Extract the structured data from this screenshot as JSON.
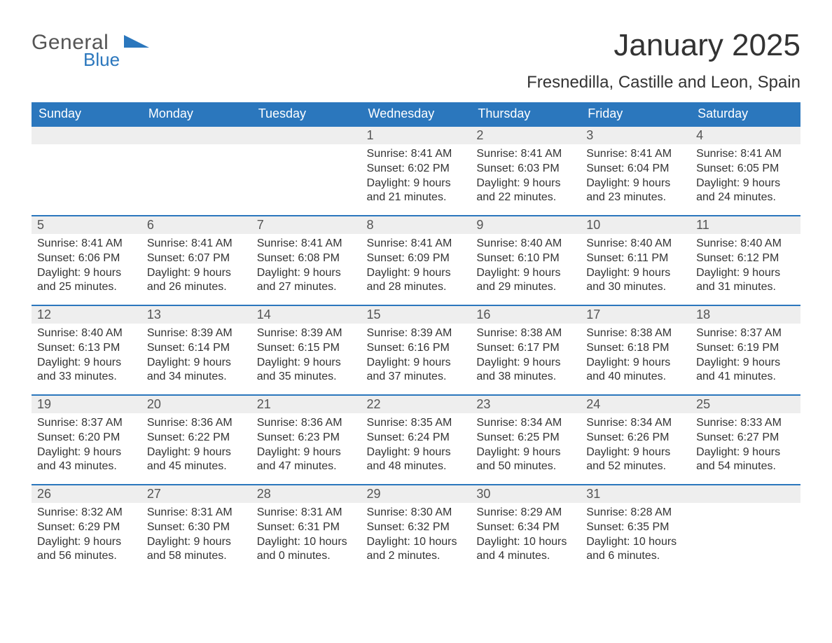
{
  "logo": {
    "word1": "General",
    "word2": "Blue"
  },
  "title": "January 2025",
  "location": "Fresnedilla, Castille and Leon, Spain",
  "colors": {
    "brand_blue": "#2b77bd",
    "header_text": "#ffffff",
    "day_bg": "#eeeeee",
    "body_text": "#333333",
    "daynum_text": "#555555",
    "page_bg": "#ffffff"
  },
  "typography": {
    "title_fontsize_pt": 33,
    "location_fontsize_pt": 18,
    "header_fontsize_pt": 14,
    "daynum_fontsize_pt": 14,
    "body_fontsize_pt": 12
  },
  "calendar": {
    "type": "table",
    "weekday_headers": [
      "Sunday",
      "Monday",
      "Tuesday",
      "Wednesday",
      "Thursday",
      "Friday",
      "Saturday"
    ],
    "weeks": [
      [
        null,
        null,
        null,
        {
          "day": "1",
          "sunrise": "Sunrise: 8:41 AM",
          "sunset": "Sunset: 6:02 PM",
          "daylight": "Daylight: 9 hours and 21 minutes."
        },
        {
          "day": "2",
          "sunrise": "Sunrise: 8:41 AM",
          "sunset": "Sunset: 6:03 PM",
          "daylight": "Daylight: 9 hours and 22 minutes."
        },
        {
          "day": "3",
          "sunrise": "Sunrise: 8:41 AM",
          "sunset": "Sunset: 6:04 PM",
          "daylight": "Daylight: 9 hours and 23 minutes."
        },
        {
          "day": "4",
          "sunrise": "Sunrise: 8:41 AM",
          "sunset": "Sunset: 6:05 PM",
          "daylight": "Daylight: 9 hours and 24 minutes."
        }
      ],
      [
        {
          "day": "5",
          "sunrise": "Sunrise: 8:41 AM",
          "sunset": "Sunset: 6:06 PM",
          "daylight": "Daylight: 9 hours and 25 minutes."
        },
        {
          "day": "6",
          "sunrise": "Sunrise: 8:41 AM",
          "sunset": "Sunset: 6:07 PM",
          "daylight": "Daylight: 9 hours and 26 minutes."
        },
        {
          "day": "7",
          "sunrise": "Sunrise: 8:41 AM",
          "sunset": "Sunset: 6:08 PM",
          "daylight": "Daylight: 9 hours and 27 minutes."
        },
        {
          "day": "8",
          "sunrise": "Sunrise: 8:41 AM",
          "sunset": "Sunset: 6:09 PM",
          "daylight": "Daylight: 9 hours and 28 minutes."
        },
        {
          "day": "9",
          "sunrise": "Sunrise: 8:40 AM",
          "sunset": "Sunset: 6:10 PM",
          "daylight": "Daylight: 9 hours and 29 minutes."
        },
        {
          "day": "10",
          "sunrise": "Sunrise: 8:40 AM",
          "sunset": "Sunset: 6:11 PM",
          "daylight": "Daylight: 9 hours and 30 minutes."
        },
        {
          "day": "11",
          "sunrise": "Sunrise: 8:40 AM",
          "sunset": "Sunset: 6:12 PM",
          "daylight": "Daylight: 9 hours and 31 minutes."
        }
      ],
      [
        {
          "day": "12",
          "sunrise": "Sunrise: 8:40 AM",
          "sunset": "Sunset: 6:13 PM",
          "daylight": "Daylight: 9 hours and 33 minutes."
        },
        {
          "day": "13",
          "sunrise": "Sunrise: 8:39 AM",
          "sunset": "Sunset: 6:14 PM",
          "daylight": "Daylight: 9 hours and 34 minutes."
        },
        {
          "day": "14",
          "sunrise": "Sunrise: 8:39 AM",
          "sunset": "Sunset: 6:15 PM",
          "daylight": "Daylight: 9 hours and 35 minutes."
        },
        {
          "day": "15",
          "sunrise": "Sunrise: 8:39 AM",
          "sunset": "Sunset: 6:16 PM",
          "daylight": "Daylight: 9 hours and 37 minutes."
        },
        {
          "day": "16",
          "sunrise": "Sunrise: 8:38 AM",
          "sunset": "Sunset: 6:17 PM",
          "daylight": "Daylight: 9 hours and 38 minutes."
        },
        {
          "day": "17",
          "sunrise": "Sunrise: 8:38 AM",
          "sunset": "Sunset: 6:18 PM",
          "daylight": "Daylight: 9 hours and 40 minutes."
        },
        {
          "day": "18",
          "sunrise": "Sunrise: 8:37 AM",
          "sunset": "Sunset: 6:19 PM",
          "daylight": "Daylight: 9 hours and 41 minutes."
        }
      ],
      [
        {
          "day": "19",
          "sunrise": "Sunrise: 8:37 AM",
          "sunset": "Sunset: 6:20 PM",
          "daylight": "Daylight: 9 hours and 43 minutes."
        },
        {
          "day": "20",
          "sunrise": "Sunrise: 8:36 AM",
          "sunset": "Sunset: 6:22 PM",
          "daylight": "Daylight: 9 hours and 45 minutes."
        },
        {
          "day": "21",
          "sunrise": "Sunrise: 8:36 AM",
          "sunset": "Sunset: 6:23 PM",
          "daylight": "Daylight: 9 hours and 47 minutes."
        },
        {
          "day": "22",
          "sunrise": "Sunrise: 8:35 AM",
          "sunset": "Sunset: 6:24 PM",
          "daylight": "Daylight: 9 hours and 48 minutes."
        },
        {
          "day": "23",
          "sunrise": "Sunrise: 8:34 AM",
          "sunset": "Sunset: 6:25 PM",
          "daylight": "Daylight: 9 hours and 50 minutes."
        },
        {
          "day": "24",
          "sunrise": "Sunrise: 8:34 AM",
          "sunset": "Sunset: 6:26 PM",
          "daylight": "Daylight: 9 hours and 52 minutes."
        },
        {
          "day": "25",
          "sunrise": "Sunrise: 8:33 AM",
          "sunset": "Sunset: 6:27 PM",
          "daylight": "Daylight: 9 hours and 54 minutes."
        }
      ],
      [
        {
          "day": "26",
          "sunrise": "Sunrise: 8:32 AM",
          "sunset": "Sunset: 6:29 PM",
          "daylight": "Daylight: 9 hours and 56 minutes."
        },
        {
          "day": "27",
          "sunrise": "Sunrise: 8:31 AM",
          "sunset": "Sunset: 6:30 PM",
          "daylight": "Daylight: 9 hours and 58 minutes."
        },
        {
          "day": "28",
          "sunrise": "Sunrise: 8:31 AM",
          "sunset": "Sunset: 6:31 PM",
          "daylight": "Daylight: 10 hours and 0 minutes."
        },
        {
          "day": "29",
          "sunrise": "Sunrise: 8:30 AM",
          "sunset": "Sunset: 6:32 PM",
          "daylight": "Daylight: 10 hours and 2 minutes."
        },
        {
          "day": "30",
          "sunrise": "Sunrise: 8:29 AM",
          "sunset": "Sunset: 6:34 PM",
          "daylight": "Daylight: 10 hours and 4 minutes."
        },
        {
          "day": "31",
          "sunrise": "Sunrise: 8:28 AM",
          "sunset": "Sunset: 6:35 PM",
          "daylight": "Daylight: 10 hours and 6 minutes."
        },
        null
      ]
    ]
  }
}
